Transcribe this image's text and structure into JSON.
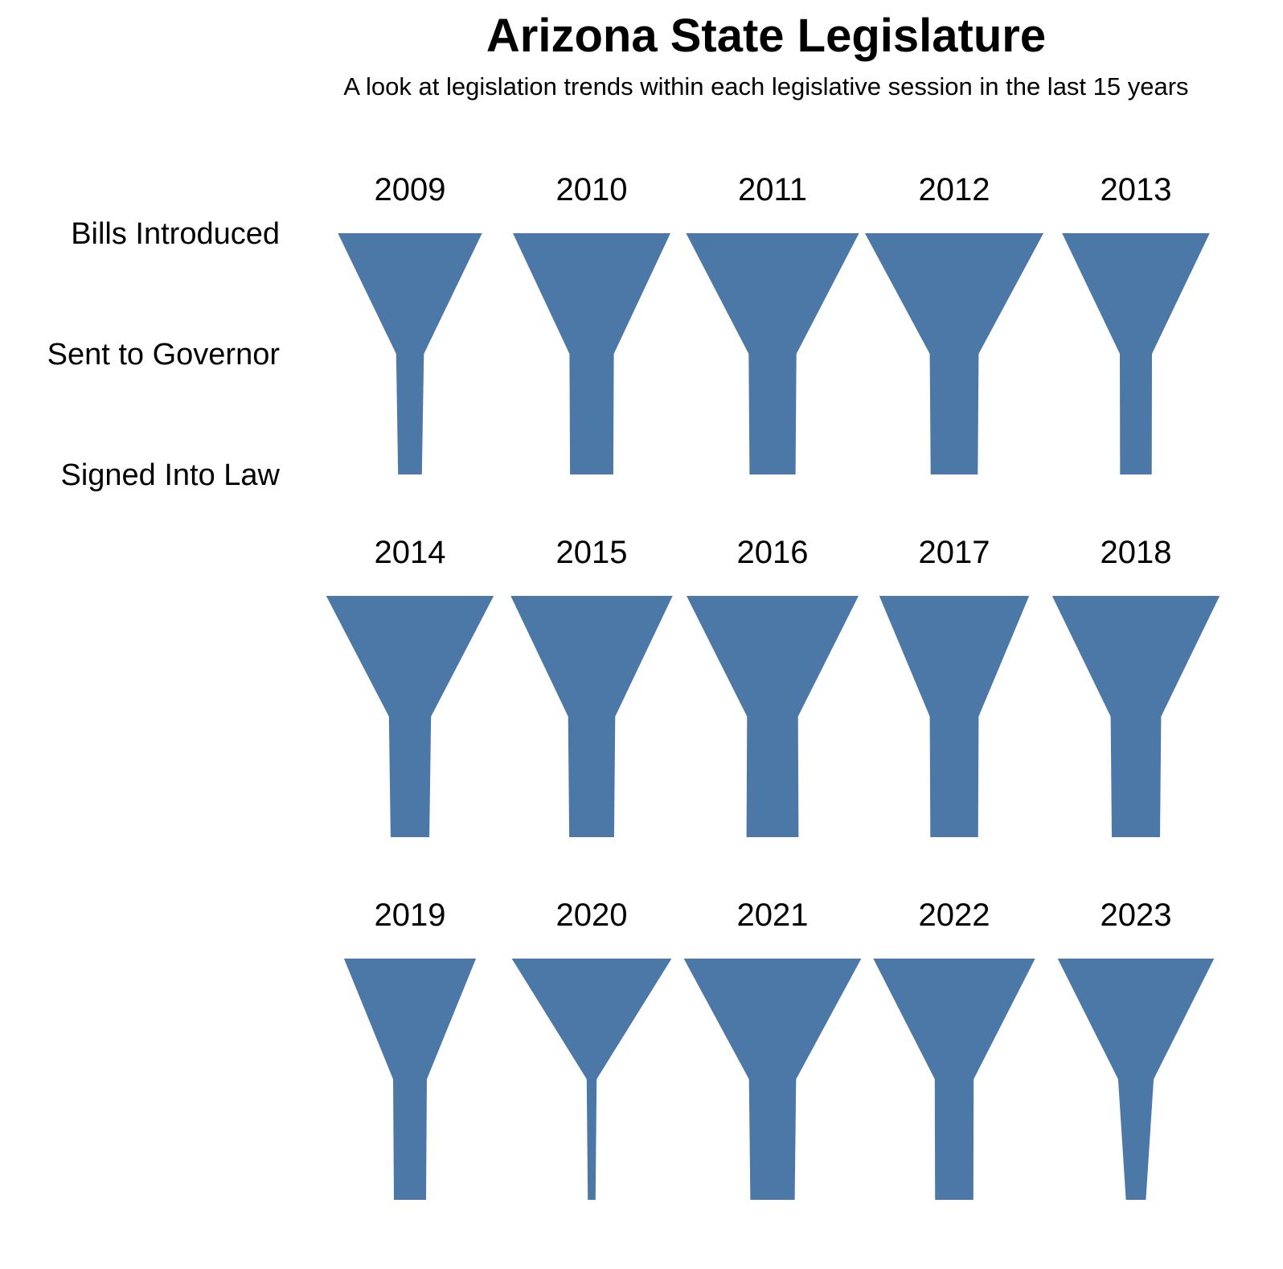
{
  "chart_data": {
    "type": "funnel",
    "title": "Arizona State Legislature",
    "subtitle": "A look at legislation trends within each legislative session in the last 15 years",
    "stages": [
      "Bills Introduced",
      "Sent to Governor",
      "Signed Into Law"
    ],
    "color": "#4c78a8",
    "legend": "none",
    "grid": false,
    "sessions": [
      {
        "year": "2009",
        "values": [
          1300,
          250,
          215
        ]
      },
      {
        "year": "2010",
        "values": [
          1420,
          400,
          390
        ]
      },
      {
        "year": "2011",
        "values": [
          1560,
          430,
          415
        ]
      },
      {
        "year": "2012",
        "values": [
          1610,
          440,
          425
        ]
      },
      {
        "year": "2013",
        "values": [
          1330,
          290,
          285
        ]
      },
      {
        "year": "2014",
        "values": [
          1510,
          380,
          350
        ]
      },
      {
        "year": "2015",
        "values": [
          1460,
          425,
          405
        ]
      },
      {
        "year": "2016",
        "values": [
          1550,
          460,
          470
        ]
      },
      {
        "year": "2017",
        "values": [
          1350,
          440,
          430
        ]
      },
      {
        "year": "2018",
        "values": [
          1510,
          455,
          435
        ]
      },
      {
        "year": "2019",
        "values": [
          1190,
          305,
          290
        ]
      },
      {
        "year": "2020",
        "values": [
          1440,
          90,
          70
        ]
      },
      {
        "year": "2021",
        "values": [
          1600,
          425,
          400
        ]
      },
      {
        "year": "2022",
        "values": [
          1460,
          350,
          345
        ]
      },
      {
        "year": "2023",
        "values": [
          1410,
          320,
          180
        ]
      }
    ]
  }
}
